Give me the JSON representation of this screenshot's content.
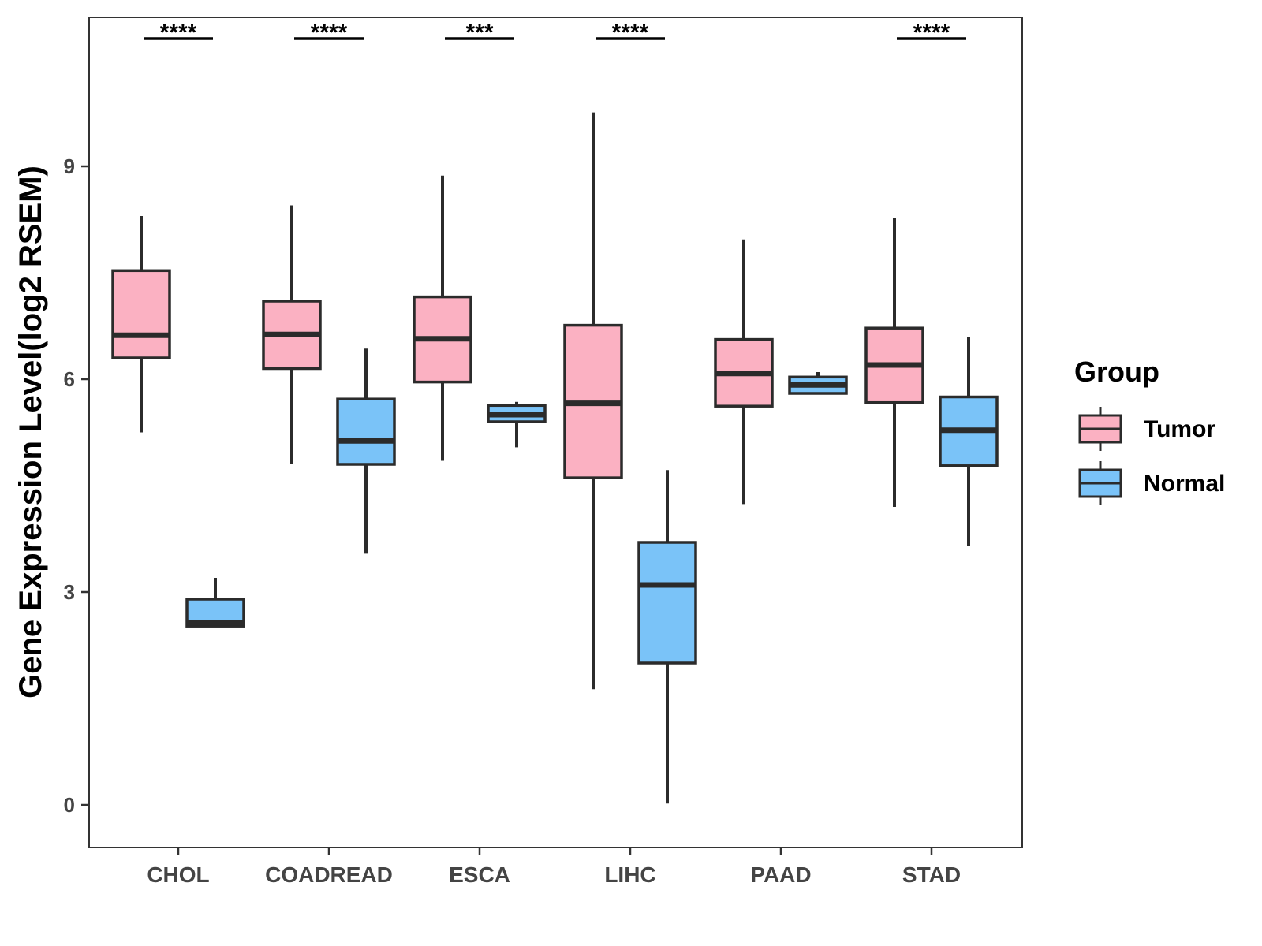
{
  "chart_data": {
    "type": "boxplot",
    "title": "",
    "xlabel": "",
    "ylabel": "Gene Expression Level(log2 RSEM)",
    "ylim": [
      -0.6,
      11.1
    ],
    "yticks": [
      0,
      3,
      6,
      9
    ],
    "categories": [
      "CHOL",
      "COADREAD",
      "ESCA",
      "LIHC",
      "PAAD",
      "STAD"
    ],
    "legend": {
      "title": "Group",
      "position": "right",
      "entries": [
        {
          "name": "Tumor",
          "color": "#FBB1C2"
        },
        {
          "name": "Normal",
          "color": "#7AC3F8"
        }
      ]
    },
    "series": [
      {
        "name": "Tumor",
        "color": "#FBB1C2",
        "boxes": [
          {
            "category": "CHOL",
            "min": 5.25,
            "q1": 6.3,
            "median": 6.62,
            "q3": 7.53,
            "max": 8.3
          },
          {
            "category": "COADREAD",
            "min": 4.81,
            "q1": 6.15,
            "median": 6.63,
            "q3": 7.1,
            "max": 8.45
          },
          {
            "category": "ESCA",
            "min": 4.85,
            "q1": 5.96,
            "median": 6.57,
            "q3": 7.16,
            "max": 8.87
          },
          {
            "category": "LIHC",
            "min": 1.63,
            "q1": 4.61,
            "median": 5.66,
            "q3": 6.76,
            "max": 9.76
          },
          {
            "category": "PAAD",
            "min": 4.24,
            "q1": 5.62,
            "median": 6.08,
            "q3": 6.56,
            "max": 7.97
          },
          {
            "category": "STAD",
            "min": 4.2,
            "q1": 5.67,
            "median": 6.2,
            "q3": 6.72,
            "max": 8.27
          }
        ]
      },
      {
        "name": "Normal",
        "color": "#7AC3F8",
        "boxes": [
          {
            "category": "CHOL",
            "min": 2.52,
            "q1": 2.52,
            "median": 2.57,
            "q3": 2.9,
            "max": 3.2
          },
          {
            "category": "COADREAD",
            "min": 3.54,
            "q1": 4.8,
            "median": 5.13,
            "q3": 5.72,
            "max": 6.43
          },
          {
            "category": "ESCA",
            "min": 5.04,
            "q1": 5.4,
            "median": 5.5,
            "q3": 5.63,
            "max": 5.68
          },
          {
            "category": "LIHC",
            "min": 0.02,
            "q1": 2.0,
            "median": 3.1,
            "q3": 3.7,
            "max": 4.72
          },
          {
            "category": "PAAD",
            "min": 5.8,
            "q1": 5.8,
            "median": 5.92,
            "q3": 6.03,
            "max": 6.1
          },
          {
            "category": "STAD",
            "min": 3.65,
            "q1": 4.78,
            "median": 5.28,
            "q3": 5.75,
            "max": 6.6
          }
        ]
      }
    ],
    "significance": [
      {
        "category": "CHOL",
        "label": "****"
      },
      {
        "category": "COADREAD",
        "label": "****"
      },
      {
        "category": "ESCA",
        "label": "***"
      },
      {
        "category": "LIHC",
        "label": "****"
      },
      {
        "category": "PAAD",
        "label": ""
      },
      {
        "category": "STAD",
        "label": "****"
      }
    ],
    "significance_level": 10.8
  }
}
